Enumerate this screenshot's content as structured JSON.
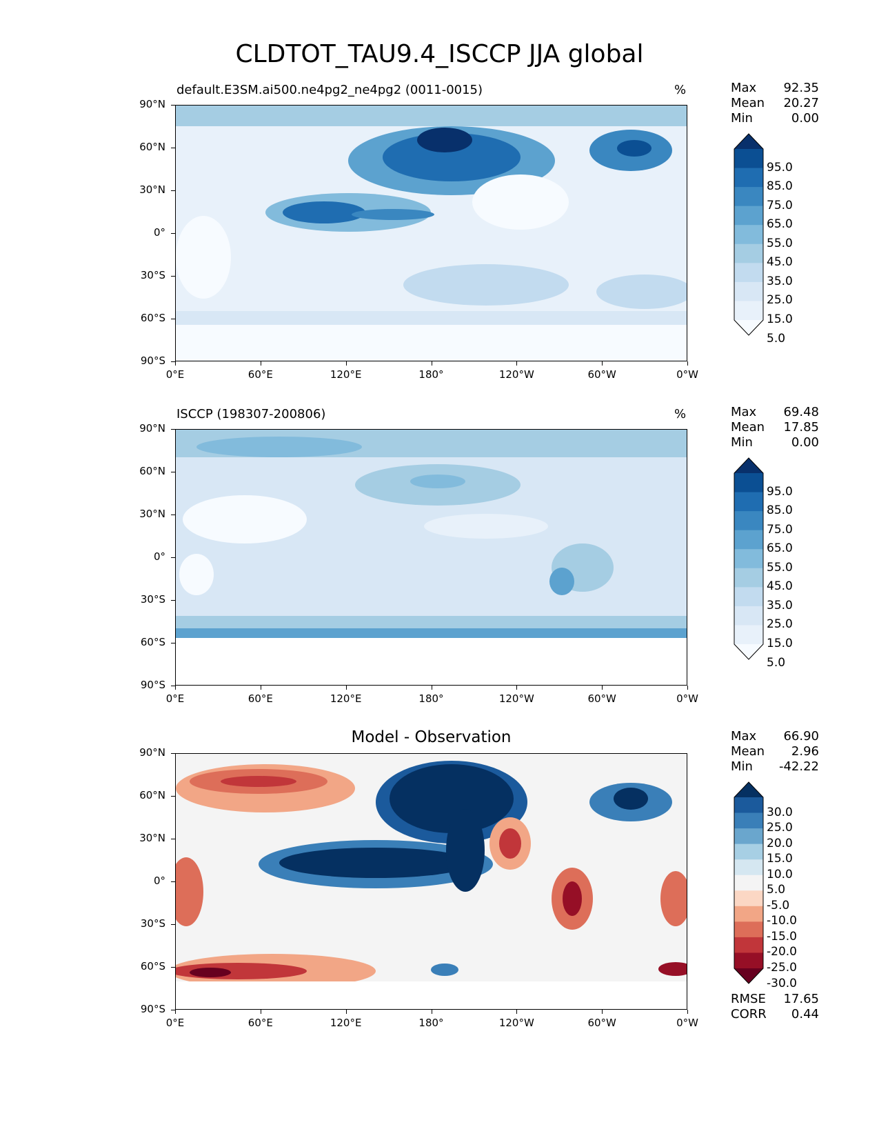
{
  "title": "CLDTOT_TAU9.4_ISCCP JJA global",
  "xticks": [
    "0°E",
    "60°E",
    "120°E",
    "180°",
    "120°W",
    "60°W",
    "0°W"
  ],
  "yticks": [
    "90°N",
    "60°N",
    "30°N",
    "0°",
    "30°S",
    "60°S",
    "90°S"
  ],
  "panels": [
    {
      "title_left": "default.E3SM.ai500.ne4pg2_ne4pg2 (0011-0015)",
      "title_center": "",
      "units": "%",
      "stats": {
        "max_label": "Max",
        "max": "92.35",
        "mean_label": "Mean",
        "mean": "20.27",
        "min_label": "Min",
        "min": "0.00"
      },
      "colorbar_labels": [
        "95.0",
        "85.0",
        "75.0",
        "65.0",
        "55.0",
        "45.0",
        "35.0",
        "25.0",
        "15.0",
        "5.0"
      ],
      "colorbar_colors": [
        "#08306b",
        "#0b4f93",
        "#1f6db1",
        "#3a87c0",
        "#5ca2cf",
        "#82bbdc",
        "#a5cde3",
        "#c2dbef",
        "#d8e7f5",
        "#e8f1fa",
        "#f7fbff"
      ]
    },
    {
      "title_left": "ISCCP (198307-200806)",
      "title_center": "",
      "units": "%",
      "stats": {
        "max_label": "Max",
        "max": "69.48",
        "mean_label": "Mean",
        "mean": "17.85",
        "min_label": "Min",
        "min": "0.00"
      },
      "colorbar_labels": [
        "95.0",
        "85.0",
        "75.0",
        "65.0",
        "55.0",
        "45.0",
        "35.0",
        "25.0",
        "15.0",
        "5.0"
      ],
      "colorbar_colors": [
        "#08306b",
        "#0b4f93",
        "#1f6db1",
        "#3a87c0",
        "#5ca2cf",
        "#82bbdc",
        "#a5cde3",
        "#c2dbef",
        "#d8e7f5",
        "#e8f1fa",
        "#f7fbff"
      ]
    },
    {
      "title_left": "",
      "title_center": "Model - Observation",
      "units": "",
      "stats": {
        "max_label": "Max",
        "max": "66.90",
        "mean_label": "Mean",
        "mean": "2.96",
        "min_label": "Min",
        "min": "-42.22"
      },
      "colorbar_labels": [
        "30.0",
        "25.0",
        "20.0",
        "15.0",
        "10.0",
        "5.0",
        "-5.0",
        "-10.0",
        "-15.0",
        "-20.0",
        "-25.0",
        "-30.0"
      ],
      "colorbar_colors": [
        "#053061",
        "#1b5a9c",
        "#3a7fb8",
        "#6aa6cd",
        "#a7cfe4",
        "#d5e7f1",
        "#f4f4f4",
        "#fbd7c4",
        "#f2a686",
        "#dd6e59",
        "#c1363a",
        "#960f26",
        "#67001f"
      ],
      "rmse_label": "RMSE",
      "rmse": "17.65",
      "corr_label": "CORR",
      "corr": "0.44"
    }
  ]
}
